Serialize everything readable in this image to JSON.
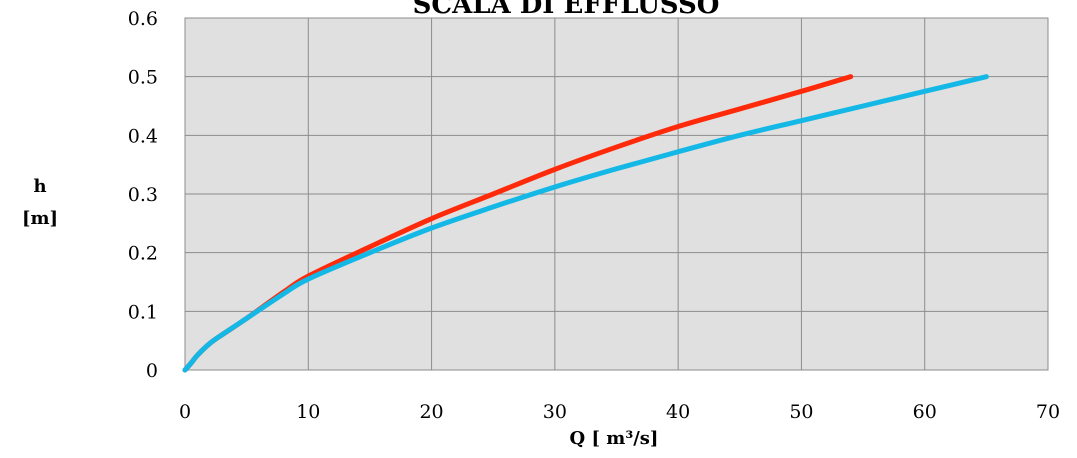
{
  "chart_data": {
    "type": "line",
    "title": "SCALA DI EFFLUSSO",
    "xlabel": "Q [ m³/s]",
    "ylabel_lines": [
      "h",
      "[m]"
    ],
    "xlim": [
      0,
      70
    ],
    "ylim": [
      0,
      0.6
    ],
    "xticks": [
      "0",
      "10",
      "20",
      "30",
      "40",
      "50",
      "60",
      "70"
    ],
    "yticks": [
      "0",
      "0.1",
      "0.2",
      "0.3",
      "0.4",
      "0.5",
      "0.6"
    ],
    "grid": true,
    "plot_background": "#e0e0e0",
    "gridline_color": "#8c8c8c",
    "series": [
      {
        "color": "#ff2a0a",
        "points": [
          {
            "x": 0,
            "y": 0
          },
          {
            "x": 0.5,
            "y": 0.012
          },
          {
            "x": 1,
            "y": 0.025
          },
          {
            "x": 2,
            "y": 0.045
          },
          {
            "x": 3,
            "y": 0.06
          },
          {
            "x": 5,
            "y": 0.088
          },
          {
            "x": 8,
            "y": 0.133
          },
          {
            "x": 10,
            "y": 0.16
          },
          {
            "x": 15,
            "y": 0.21
          },
          {
            "x": 20,
            "y": 0.258
          },
          {
            "x": 25,
            "y": 0.3
          },
          {
            "x": 30,
            "y": 0.342
          },
          {
            "x": 35,
            "y": 0.38
          },
          {
            "x": 40,
            "y": 0.415
          },
          {
            "x": 45,
            "y": 0.445
          },
          {
            "x": 50,
            "y": 0.475
          },
          {
            "x": 54,
            "y": 0.5
          }
        ]
      },
      {
        "color": "#14b8e6",
        "points": [
          {
            "x": 0,
            "y": 0
          },
          {
            "x": 0.5,
            "y": 0.012
          },
          {
            "x": 1,
            "y": 0.025
          },
          {
            "x": 2,
            "y": 0.045
          },
          {
            "x": 3,
            "y": 0.06
          },
          {
            "x": 5,
            "y": 0.088
          },
          {
            "x": 8,
            "y": 0.13
          },
          {
            "x": 10,
            "y": 0.155
          },
          {
            "x": 15,
            "y": 0.2
          },
          {
            "x": 20,
            "y": 0.242
          },
          {
            "x": 25,
            "y": 0.278
          },
          {
            "x": 30,
            "y": 0.312
          },
          {
            "x": 35,
            "y": 0.343
          },
          {
            "x": 40,
            "y": 0.372
          },
          {
            "x": 45,
            "y": 0.4
          },
          {
            "x": 50,
            "y": 0.425
          },
          {
            "x": 55,
            "y": 0.45
          },
          {
            "x": 60,
            "y": 0.475
          },
          {
            "x": 65,
            "y": 0.5
          }
        ]
      }
    ]
  }
}
